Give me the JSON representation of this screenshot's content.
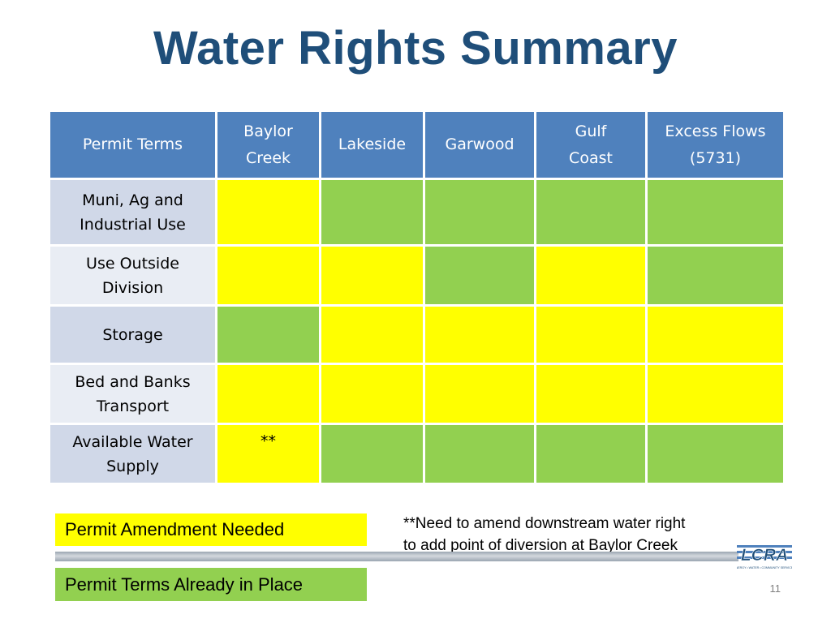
{
  "title": "Water Rights Summary",
  "colors": {
    "title": "#1f4e79",
    "header": "#4f81bd",
    "amendment_needed": "#ffff00",
    "already_in_place": "#92d050",
    "row_odd": "#d0d8e8",
    "row_even": "#e9edf4"
  },
  "table": {
    "headers": [
      [
        "Permit Terms"
      ],
      [
        "Baylor",
        "Creek"
      ],
      [
        "Lakeside"
      ],
      [
        "Garwood"
      ],
      [
        "Gulf",
        "Coast"
      ],
      [
        "Excess Flows",
        "(5731)"
      ]
    ],
    "rows": [
      {
        "label": [
          "Muni, Ag and",
          "Industrial Use"
        ],
        "cells": [
          "amendment_needed",
          "already_in_place",
          "already_in_place",
          "already_in_place",
          "already_in_place"
        ]
      },
      {
        "label": [
          "Use Outside",
          "Division"
        ],
        "cells": [
          "amendment_needed",
          "amendment_needed",
          "already_in_place",
          "amendment_needed",
          "already_in_place"
        ]
      },
      {
        "label": [
          "Storage"
        ],
        "cells": [
          "already_in_place",
          "amendment_needed",
          "amendment_needed",
          "amendment_needed",
          "amendment_needed"
        ]
      },
      {
        "label": [
          "Bed and Banks",
          "Transport"
        ],
        "cells": [
          "amendment_needed",
          "amendment_needed",
          "amendment_needed",
          "amendment_needed",
          "amendment_needed"
        ]
      },
      {
        "label": [
          "Available Water",
          "Supply"
        ],
        "cells": [
          "amendment_needed",
          "already_in_place",
          "already_in_place",
          "already_in_place",
          "already_in_place"
        ],
        "notes": [
          "**",
          "",
          "",
          "",
          ""
        ]
      }
    ]
  },
  "legend": {
    "amendment_needed": "Permit  Amendment Needed",
    "already_in_place": "Permit Terms Already in Place"
  },
  "footnote": [
    "**Need to amend downstream water right",
    "to add point of diversion at Baylor Creek"
  ],
  "logo": {
    "text": "LCRA",
    "tagline": "ENERGY • WATER • COMMUNITY SERVICES"
  },
  "page_number": "11"
}
